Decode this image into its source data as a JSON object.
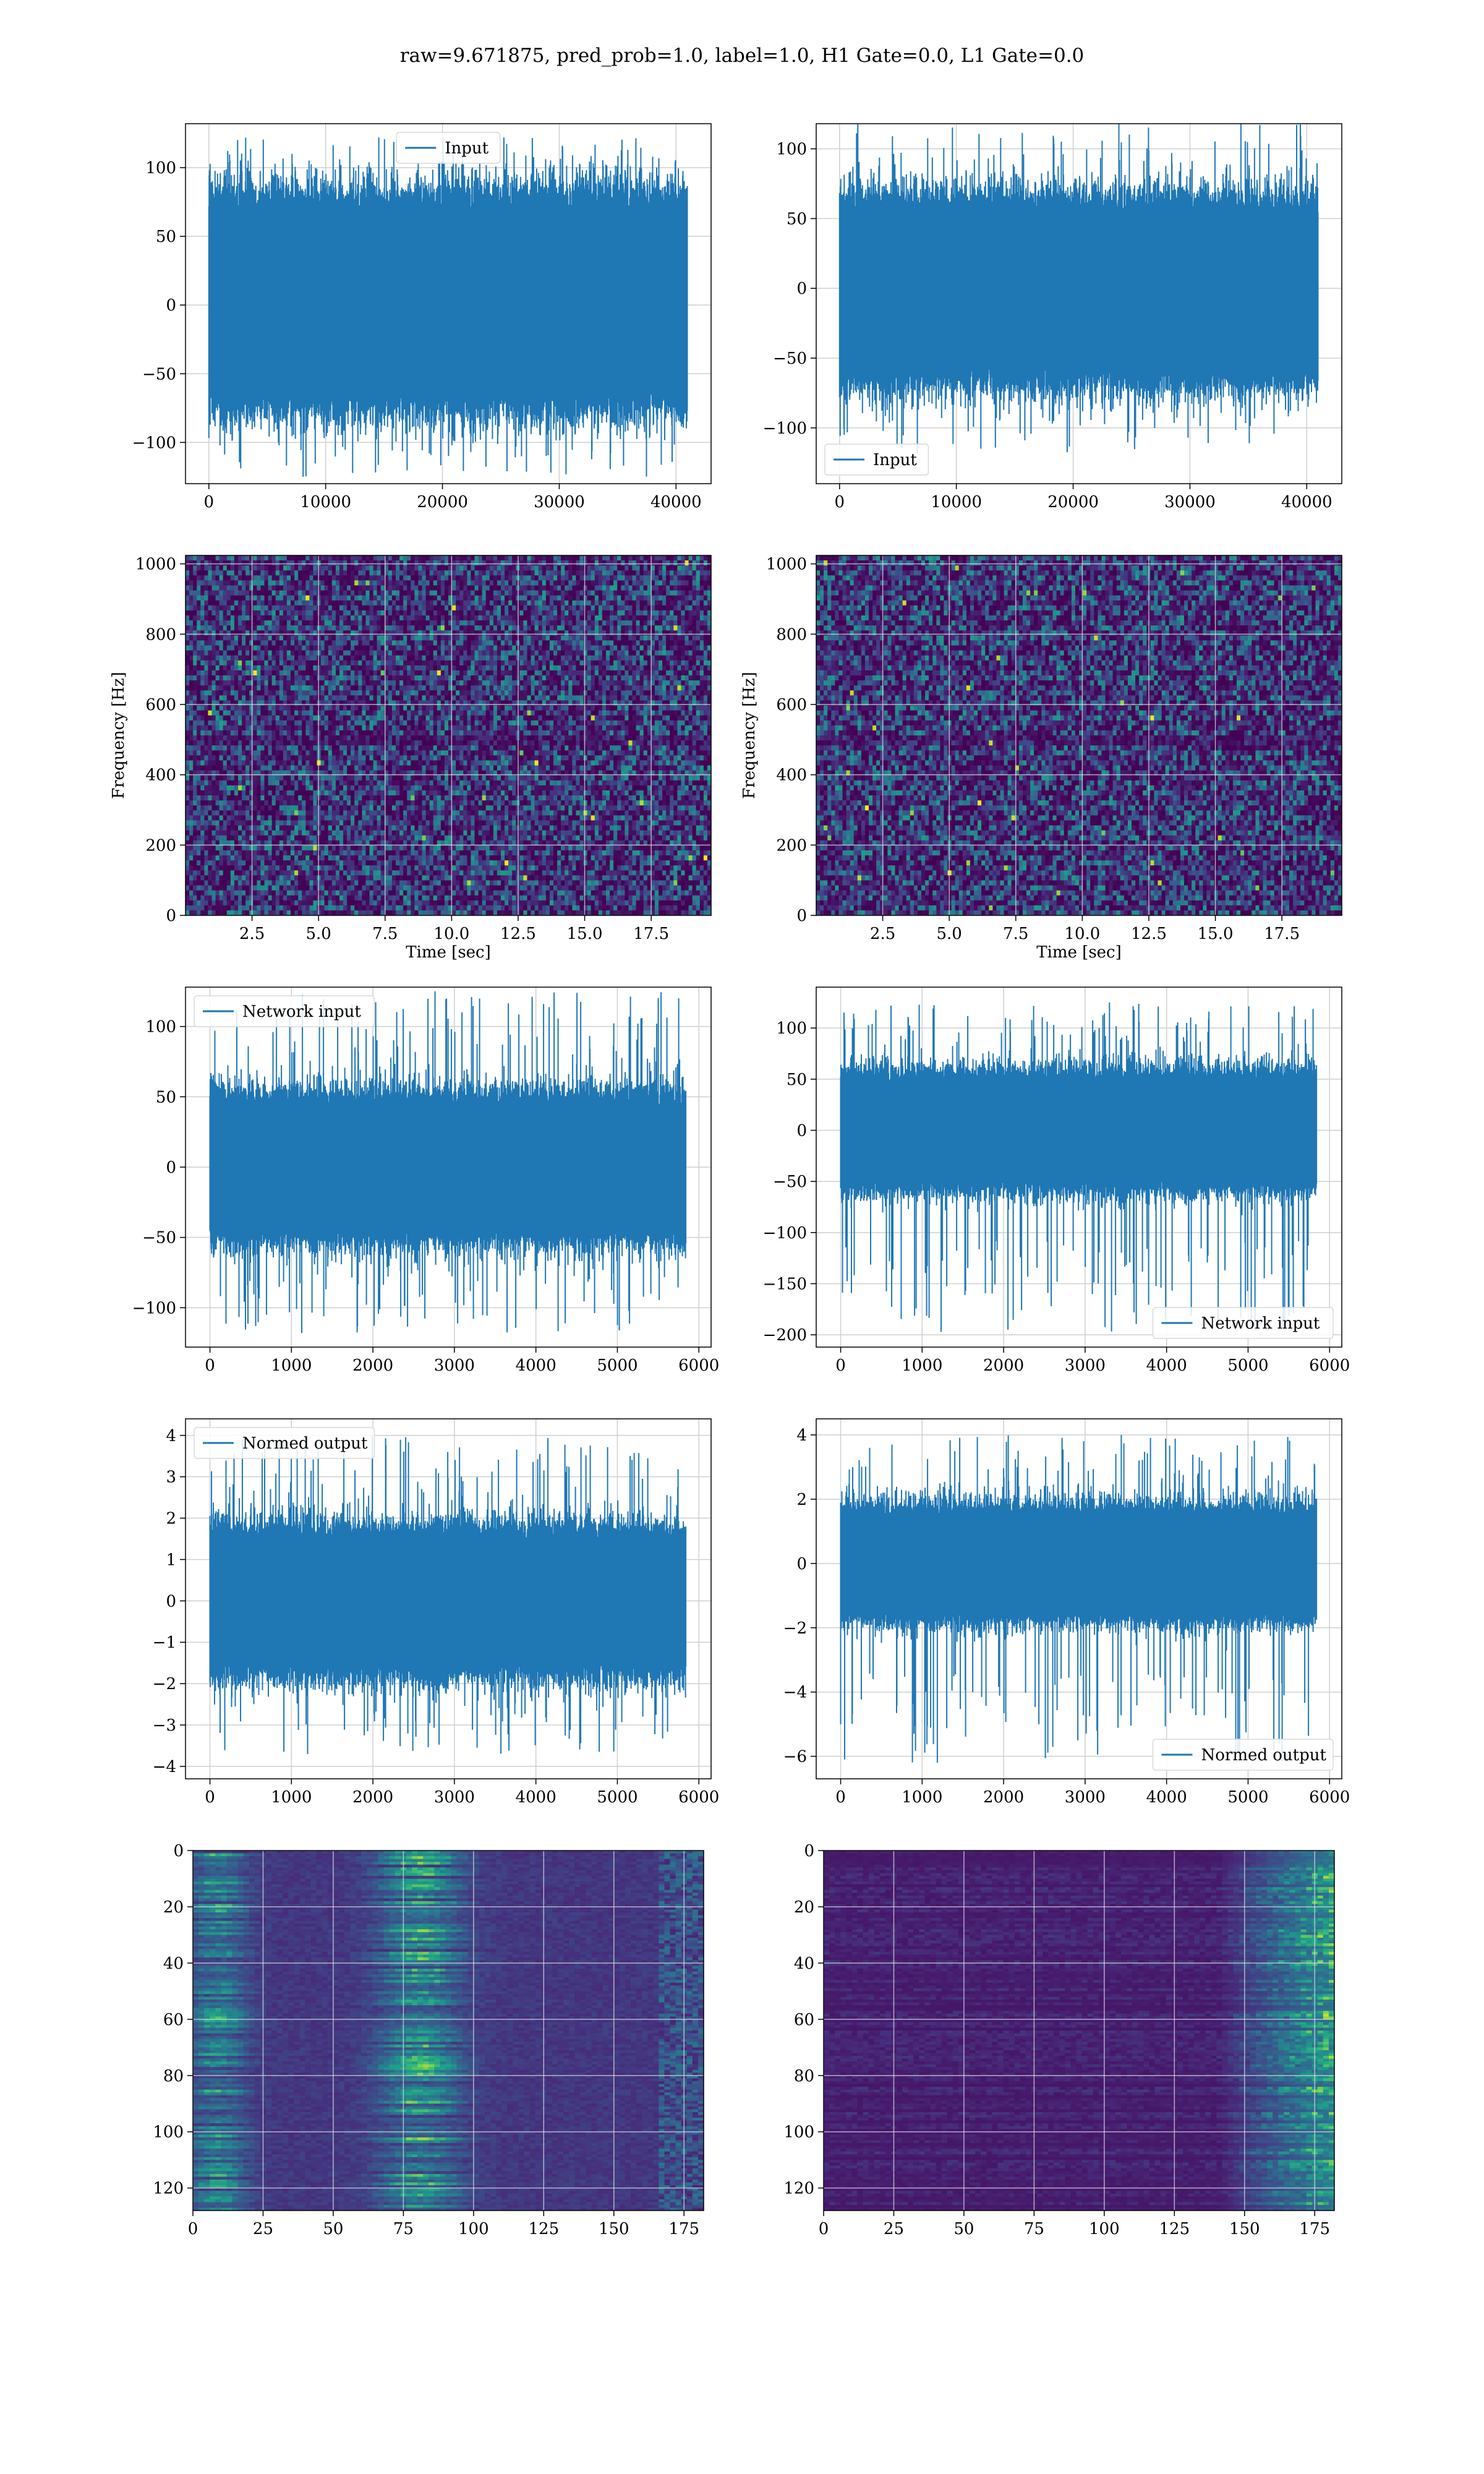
{
  "suptitle": "raw=9.671875, pred_prob=1.0, label=1.0, H1 Gate=0.0, L1 Gate=0.0",
  "colors": {
    "series": "#1f77b4",
    "grid": "#cfcfcf",
    "viridis": [
      "#440154",
      "#482878",
      "#3e4a89",
      "#31688e",
      "#26828e",
      "#1f9e89",
      "#35b779",
      "#6ece58",
      "#b5de2b",
      "#fde725"
    ]
  },
  "chart_data": [
    {
      "id": "r0c0",
      "type": "line",
      "legend": {
        "label": "Input",
        "loc": "upper center"
      },
      "xlim": [
        -2000,
        43000
      ],
      "ylim": [
        -130,
        132
      ],
      "xticks": [
        0,
        10000,
        20000,
        30000,
        40000
      ],
      "yticks": [
        -100,
        -50,
        0,
        50,
        100
      ],
      "xlabel": "",
      "ylabel": "",
      "signal": {
        "n": 40960,
        "x_start": 0,
        "x_end": 40960,
        "band": [
          -72,
          78
        ],
        "peak_max": 122,
        "peak_min": -125
      }
    },
    {
      "id": "r0c1",
      "type": "line",
      "legend": {
        "label": "Input",
        "loc": "lower left"
      },
      "xlim": [
        -2000,
        43000
      ],
      "ylim": [
        -140,
        118
      ],
      "xticks": [
        0,
        10000,
        20000,
        30000,
        40000
      ],
      "yticks": [
        -100,
        -50,
        0,
        50,
        100
      ],
      "xlabel": "",
      "ylabel": "",
      "signal": {
        "n": 40960,
        "x_start": 0,
        "x_end": 40960,
        "band": [
          -65,
          62
        ],
        "peak_max": 118,
        "peak_min": -118
      }
    },
    {
      "id": "r1c0",
      "type": "heatmap",
      "xlim": [
        0,
        19.75
      ],
      "ylim": [
        0,
        1024
      ],
      "xticks": [
        2.5,
        5.0,
        7.5,
        10.0,
        12.5,
        15.0,
        17.5
      ],
      "yticks": [
        0,
        200,
        400,
        600,
        800,
        1000
      ],
      "xlabel": "Time [sec]",
      "ylabel": "Frequency [Hz]",
      "grid": true
    },
    {
      "id": "r1c1",
      "type": "heatmap",
      "xlim": [
        0,
        19.75
      ],
      "ylim": [
        0,
        1024
      ],
      "xticks": [
        2.5,
        5.0,
        7.5,
        10.0,
        12.5,
        15.0,
        17.5
      ],
      "yticks": [
        0,
        200,
        400,
        600,
        800,
        1000
      ],
      "xlabel": "Time [sec]",
      "ylabel": "Frequency [Hz]",
      "grid": true
    },
    {
      "id": "r2c0",
      "type": "line",
      "legend": {
        "label": "Network input",
        "loc": "upper left"
      },
      "xlim": [
        -300,
        6150
      ],
      "ylim": [
        -128,
        128
      ],
      "xticks": [
        0,
        1000,
        2000,
        3000,
        4000,
        5000,
        6000
      ],
      "yticks": [
        -100,
        -50,
        0,
        50,
        100
      ],
      "xlabel": "",
      "ylabel": "",
      "signal": {
        "n": 5840,
        "x_start": 0,
        "x_end": 5840,
        "band": [
          -50,
          50
        ],
        "peak_max": 125,
        "peak_min": -118
      }
    },
    {
      "id": "r2c1",
      "type": "line",
      "legend": {
        "label": "Network input",
        "loc": "lower right"
      },
      "xlim": [
        -300,
        6150
      ],
      "ylim": [
        -212,
        140
      ],
      "xticks": [
        0,
        1000,
        2000,
        3000,
        4000,
        5000,
        6000
      ],
      "yticks": [
        -200,
        -150,
        -100,
        -50,
        0,
        50,
        100
      ],
      "xlabel": "",
      "ylabel": "",
      "signal": {
        "n": 5840,
        "x_start": 0,
        "x_end": 5840,
        "band": [
          -55,
          55
        ],
        "peak_max": 125,
        "peak_min": -197
      }
    },
    {
      "id": "r3c0",
      "type": "line",
      "legend": {
        "label": "Normed output",
        "loc": "upper left"
      },
      "xlim": [
        -300,
        6150
      ],
      "ylim": [
        -4.3,
        4.4
      ],
      "xticks": [
        0,
        1000,
        2000,
        3000,
        4000,
        5000,
        6000
      ],
      "yticks": [
        -4,
        -3,
        -2,
        -1,
        0,
        1,
        2,
        3,
        4
      ],
      "xlabel": "",
      "ylabel": "",
      "signal": {
        "n": 5840,
        "x_start": 0,
        "x_end": 5840,
        "band": [
          -1.7,
          1.7
        ],
        "peak_max": 4.0,
        "peak_min": -3.7
      }
    },
    {
      "id": "r3c1",
      "type": "line",
      "legend": {
        "label": "Normed output",
        "loc": "lower right"
      },
      "xlim": [
        -300,
        6150
      ],
      "ylim": [
        -6.7,
        4.5
      ],
      "xticks": [
        0,
        1000,
        2000,
        3000,
        4000,
        5000,
        6000
      ],
      "yticks": [
        -6,
        -4,
        -2,
        0,
        2,
        4
      ],
      "xlabel": "",
      "ylabel": "",
      "signal": {
        "n": 5840,
        "x_start": 0,
        "x_end": 5840,
        "band": [
          -1.7,
          1.7
        ],
        "peak_max": 4.0,
        "peak_min": -6.2
      }
    },
    {
      "id": "r4c0",
      "type": "heatmap",
      "xlim": [
        0,
        182
      ],
      "ylim": [
        128,
        0
      ],
      "xticks": [
        0,
        25,
        50,
        75,
        100,
        125,
        150,
        175
      ],
      "yticks": [
        0,
        20,
        40,
        60,
        80,
        100,
        120
      ],
      "xlabel": "",
      "ylabel": "",
      "grid": true
    },
    {
      "id": "r4c1",
      "type": "heatmap",
      "xlim": [
        0,
        182
      ],
      "ylim": [
        128,
        0
      ],
      "xticks": [
        0,
        25,
        50,
        75,
        100,
        125,
        150,
        175
      ],
      "yticks": [
        0,
        20,
        40,
        60,
        80,
        100,
        120
      ],
      "xlabel": "",
      "ylabel": "",
      "grid": true
    }
  ]
}
